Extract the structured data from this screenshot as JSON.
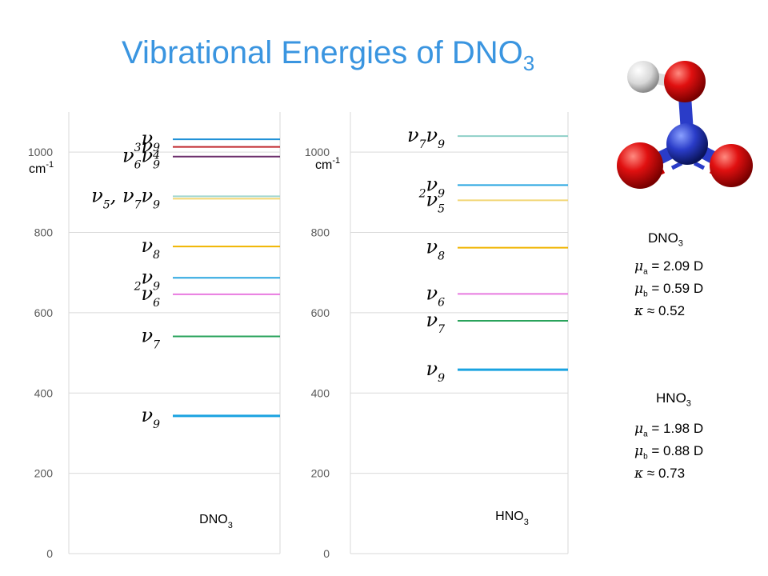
{
  "title": {
    "main": "Vibrational Energies of DNO",
    "sub": "3"
  },
  "molecule_image": "nitric-acid-ball-and-stick",
  "chart_data": [
    {
      "type": "energy-level",
      "category_label": "DNO3",
      "ylim": [
        0,
        1100
      ],
      "yticks": [
        0,
        200,
        400,
        600,
        800,
        1000
      ],
      "ylabel": "cm-1",
      "levels": [
        {
          "label": "3ν9",
          "value": 1032,
          "color": "#1e90d6"
        },
        {
          "label": "ν4",
          "value": 1013,
          "color": "#c0272d"
        },
        {
          "label": "ν6ν9",
          "value": 989,
          "color": "#6b2e6b"
        },
        {
          "label": "ν5, ν7ν9",
          "value": 890,
          "color": "#9fd6cf"
        },
        {
          "label": "",
          "value": 884,
          "color": "#f2d675"
        },
        {
          "label": "ν8",
          "value": 765,
          "color": "#f0b400"
        },
        {
          "label": "2ν9",
          "value": 687,
          "color": "#2aa6e0"
        },
        {
          "label": "ν6",
          "value": 646,
          "color": "#e87adf"
        },
        {
          "label": "ν7",
          "value": 541,
          "color": "#2aa35c"
        },
        {
          "label": "ν9",
          "value": 343,
          "color": "#1aa3e0"
        }
      ]
    },
    {
      "type": "energy-level",
      "category_label": "HNO3",
      "ylim": [
        0,
        1100
      ],
      "yticks": [
        0,
        200,
        400,
        600,
        800,
        1000
      ],
      "ylabel": "cm-1",
      "levels": [
        {
          "label": "ν7ν9",
          "value": 1040,
          "color": "#8fd0c8"
        },
        {
          "label": "2ν9",
          "value": 918,
          "color": "#2aa6e0"
        },
        {
          "label": "ν5",
          "value": 880,
          "color": "#f2d675"
        },
        {
          "label": "ν8",
          "value": 762,
          "color": "#f0b400"
        },
        {
          "label": "ν6",
          "value": 647,
          "color": "#e87adf"
        },
        {
          "label": "ν7",
          "value": 580,
          "color": "#2aa35c"
        },
        {
          "label": "ν9",
          "value": 458,
          "color": "#1aa3e0"
        }
      ]
    }
  ],
  "params": [
    {
      "heading": "DNO3",
      "mu_a": "= 2.09 D",
      "mu_b": "= 0.59 D",
      "kappa": "≈ 0.52"
    },
    {
      "heading": "HNO3",
      "mu_a": "= 1.98 D",
      "mu_b": "= 0.88 D",
      "kappa": "≈ 0.73"
    }
  ]
}
